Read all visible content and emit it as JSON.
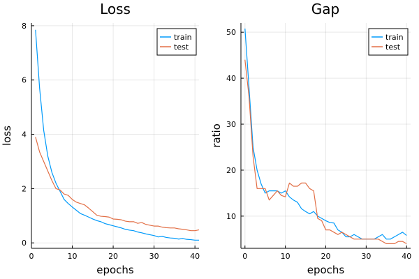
{
  "colors": {
    "train": "#009AFA",
    "test": "#E26F46"
  },
  "chart_data": [
    {
      "type": "line",
      "title": "Loss",
      "xlabel": "epochs",
      "ylabel": "loss",
      "xlim": [
        0,
        41
      ],
      "ylim": [
        -0.2,
        8.1
      ],
      "xticks": [
        0,
        10,
        20,
        30,
        40
      ],
      "yticks": [
        0,
        2,
        4,
        6,
        8
      ],
      "grid": true,
      "legend": "top-right",
      "series": [
        {
          "name": "train",
          "color": "#009AFA",
          "x": [
            1,
            2,
            3,
            4,
            5,
            6,
            7,
            8,
            9,
            10,
            11,
            12,
            13,
            14,
            15,
            16,
            17,
            18,
            19,
            20,
            21,
            22,
            23,
            24,
            25,
            26,
            27,
            28,
            29,
            30,
            31,
            32,
            33,
            34,
            35,
            36,
            37,
            38,
            39,
            40,
            41
          ],
          "y": [
            7.85,
            5.7,
            4.15,
            3.2,
            2.6,
            2.2,
            1.9,
            1.6,
            1.45,
            1.32,
            1.2,
            1.08,
            1.02,
            0.95,
            0.88,
            0.82,
            0.78,
            0.71,
            0.67,
            0.63,
            0.59,
            0.55,
            0.5,
            0.47,
            0.45,
            0.4,
            0.37,
            0.33,
            0.3,
            0.27,
            0.22,
            0.24,
            0.2,
            0.18,
            0.17,
            0.14,
            0.16,
            0.13,
            0.12,
            0.1,
            0.1
          ]
        },
        {
          "name": "test",
          "color": "#E26F46",
          "x": [
            1,
            2,
            3,
            4,
            5,
            6,
            7,
            8,
            9,
            10,
            11,
            12,
            13,
            14,
            15,
            16,
            17,
            18,
            19,
            20,
            21,
            22,
            23,
            24,
            25,
            26,
            27,
            28,
            29,
            30,
            31,
            32,
            33,
            34,
            35,
            36,
            37,
            38,
            39,
            40,
            41
          ],
          "y": [
            3.9,
            3.35,
            3.0,
            2.65,
            2.3,
            2.0,
            1.95,
            1.8,
            1.75,
            1.6,
            1.5,
            1.45,
            1.4,
            1.28,
            1.15,
            1.02,
            0.98,
            0.97,
            0.95,
            0.88,
            0.87,
            0.85,
            0.8,
            0.78,
            0.78,
            0.72,
            0.75,
            0.68,
            0.65,
            0.62,
            0.62,
            0.58,
            0.56,
            0.55,
            0.55,
            0.52,
            0.5,
            0.48,
            0.45,
            0.45,
            0.48
          ]
        }
      ]
    },
    {
      "type": "line",
      "title": "Gap",
      "xlabel": "epochs",
      "ylabel": "ratio",
      "xlim": [
        -1,
        41
      ],
      "ylim": [
        3,
        52
      ],
      "xticks": [
        0,
        10,
        20,
        30,
        40
      ],
      "yticks": [
        10,
        20,
        30,
        40,
        50
      ],
      "grid": true,
      "legend": "top-right",
      "series": [
        {
          "name": "train",
          "color": "#009AFA",
          "x": [
            0,
            1,
            2,
            3,
            4,
            5,
            6,
            7,
            8,
            9,
            10,
            11,
            12,
            13,
            14,
            15,
            16,
            17,
            18,
            19,
            20,
            21,
            22,
            23,
            24,
            25,
            26,
            27,
            28,
            29,
            30,
            31,
            32,
            33,
            34,
            35,
            36,
            37,
            38,
            39,
            40
          ],
          "y": [
            50.8,
            38,
            25,
            20,
            17,
            15,
            15.5,
            15.5,
            15.5,
            15,
            15.5,
            14.2,
            13.5,
            13,
            11.6,
            11,
            10.5,
            11,
            10,
            9.5,
            9,
            8.6,
            8.5,
            7,
            6.5,
            5.5,
            5.5,
            6,
            5.5,
            5,
            5,
            5,
            5,
            5.5,
            6,
            5,
            5,
            5.5,
            6,
            6.5,
            5.8
          ]
        },
        {
          "name": "test",
          "color": "#E26F46",
          "x": [
            0,
            1,
            2,
            3,
            4,
            5,
            6,
            7,
            8,
            9,
            10,
            11,
            12,
            13,
            14,
            15,
            16,
            17,
            18,
            19,
            20,
            21,
            22,
            23,
            24,
            25,
            26,
            27,
            28,
            29,
            30,
            31,
            32,
            33,
            34,
            35,
            36,
            37,
            38,
            39,
            40
          ],
          "y": [
            44,
            36,
            23,
            16,
            16,
            16,
            13.5,
            14.5,
            15.5,
            14.5,
            14.2,
            17.2,
            16.5,
            16.5,
            17.2,
            17.2,
            16,
            15.5,
            9.5,
            9,
            7,
            7,
            6.5,
            6,
            6.5,
            6,
            5.5,
            5,
            5,
            5,
            5,
            5,
            5,
            5,
            4.5,
            4,
            4,
            4,
            4.5,
            4.5,
            4
          ]
        }
      ]
    }
  ]
}
